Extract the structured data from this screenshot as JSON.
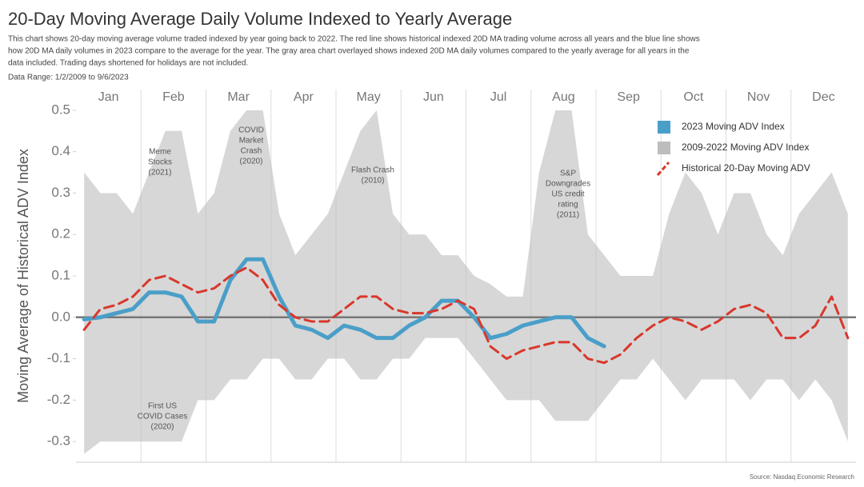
{
  "chart_data": {
    "type": "line",
    "title": "20-Day Moving Average Daily Volume Indexed to Yearly Average",
    "subtitle": [
      "This chart shows 20-day moving average volume traded indexed by year going back to 2022. The red line shows historical indexed 20D MA trading volume across all years and the blue line shows",
      "how 20D MA daily volumes in 2023 compare to the average for the year. The gray area chart overlayed shows indexed 20D MA daily volumes compared to the yearly average for all years in the",
      "data included. Trading days shortened for holidays are not included."
    ],
    "data_range": "Data Range: 1/2/2009 to 9/6/2023",
    "y_label": "Moving Average of Historical ADV Index",
    "source": "Source: Nasdaq Economic Research",
    "categories": [
      null,
      "Jan",
      null,
      null,
      null,
      "Feb",
      null,
      null,
      null,
      "Mar",
      null,
      null,
      null,
      "Apr",
      null,
      null,
      null,
      "May",
      null,
      null,
      null,
      "Jun",
      null,
      null,
      null,
      "Jul",
      null,
      null,
      null,
      "Aug",
      null,
      null,
      null,
      "Sep",
      null,
      null,
      null,
      "Oct",
      null,
      null,
      null,
      "Nov",
      null,
      null,
      null,
      "Dec",
      null,
      null
    ],
    "ylim": [
      -0.35,
      0.55
    ],
    "yticks": [
      0.5,
      0.4,
      0.3,
      0.2,
      0.1,
      {
        "value": 0,
        "label": "0.0"
      },
      -0.1,
      -0.2,
      -0.3
    ],
    "legend": "top-right",
    "series": [
      {
        "name": "2009-2022 Moving ADV Index",
        "color": "#bdbdbd",
        "style": "area",
        "values": [
          0.35,
          0.3,
          0.3,
          0.25,
          0.35,
          0.45,
          0.45,
          0.25,
          0.3,
          0.45,
          0.5,
          0.5,
          0.25,
          0.15,
          0.2,
          0.25,
          0.35,
          0.45,
          0.5,
          0.25,
          0.2,
          0.2,
          0.15,
          0.15,
          0.1,
          0.08,
          0.05,
          0.05,
          0.35,
          0.5,
          0.5,
          0.2,
          0.15,
          0.1,
          0.1,
          0.1,
          0.25,
          0.35,
          0.3,
          0.2,
          0.3,
          0.3,
          0.2,
          0.15,
          0.25,
          0.3,
          0.35,
          0.25
        ],
        "lower": [
          -0.33,
          -0.3,
          -0.3,
          -0.3,
          -0.3,
          -0.3,
          -0.3,
          -0.2,
          -0.2,
          -0.15,
          -0.15,
          -0.1,
          -0.1,
          -0.15,
          -0.15,
          -0.1,
          -0.1,
          -0.15,
          -0.15,
          -0.1,
          -0.1,
          -0.05,
          -0.05,
          -0.05,
          -0.1,
          -0.15,
          -0.2,
          -0.2,
          -0.2,
          -0.25,
          -0.25,
          -0.25,
          -0.2,
          -0.15,
          -0.15,
          -0.1,
          -0.15,
          -0.2,
          -0.15,
          -0.15,
          -0.15,
          -0.2,
          -0.15,
          -0.15,
          -0.2,
          -0.15,
          -0.2,
          -0.3
        ]
      },
      {
        "name": "2023 Moving ADV Index",
        "color": "#4a9fc8",
        "style": "solid",
        "values": [
          -0.005,
          0.0,
          0.01,
          0.02,
          0.06,
          0.06,
          0.05,
          -0.01,
          -0.01,
          0.09,
          0.14,
          0.14,
          0.05,
          -0.02,
          -0.03,
          -0.05,
          -0.02,
          -0.03,
          -0.05,
          -0.05,
          -0.02,
          0.0,
          0.04,
          0.04,
          0.0,
          -0.05,
          -0.04,
          -0.02,
          -0.01,
          0.0,
          0.0,
          -0.05,
          -0.07,
          null,
          null,
          null,
          null,
          null,
          null,
          null,
          null,
          null,
          null,
          null,
          null,
          null,
          null,
          null
        ]
      },
      {
        "name": "Historical 20-Day Moving ADV",
        "color": "#d9372b",
        "style": "dashed",
        "values": [
          -0.03,
          0.02,
          0.03,
          0.05,
          0.09,
          0.1,
          0.08,
          0.06,
          0.07,
          0.1,
          0.12,
          0.09,
          0.03,
          0.0,
          -0.01,
          -0.01,
          0.02,
          0.05,
          0.05,
          0.02,
          0.01,
          0.01,
          0.02,
          0.04,
          0.02,
          -0.07,
          -0.1,
          -0.08,
          -0.07,
          -0.06,
          -0.06,
          -0.1,
          -0.11,
          -0.09,
          -0.05,
          -0.02,
          0.0,
          -0.01,
          -0.03,
          -0.01,
          0.02,
          0.03,
          0.01,
          -0.05,
          -0.05,
          -0.02,
          0.05,
          -0.05
        ]
      }
    ],
    "annotations": [
      [
        "Meme",
        "Stocks",
        "(2021)"
      ],
      [
        "COVID",
        "Market",
        "Crash",
        "(2020)"
      ],
      [
        "Flash Crash",
        "(2010)"
      ],
      [
        "S&P",
        "Downgrades",
        "US credit",
        "rating",
        "(2011)"
      ],
      [
        "First US",
        "COVID Cases",
        "(2020)"
      ]
    ]
  }
}
